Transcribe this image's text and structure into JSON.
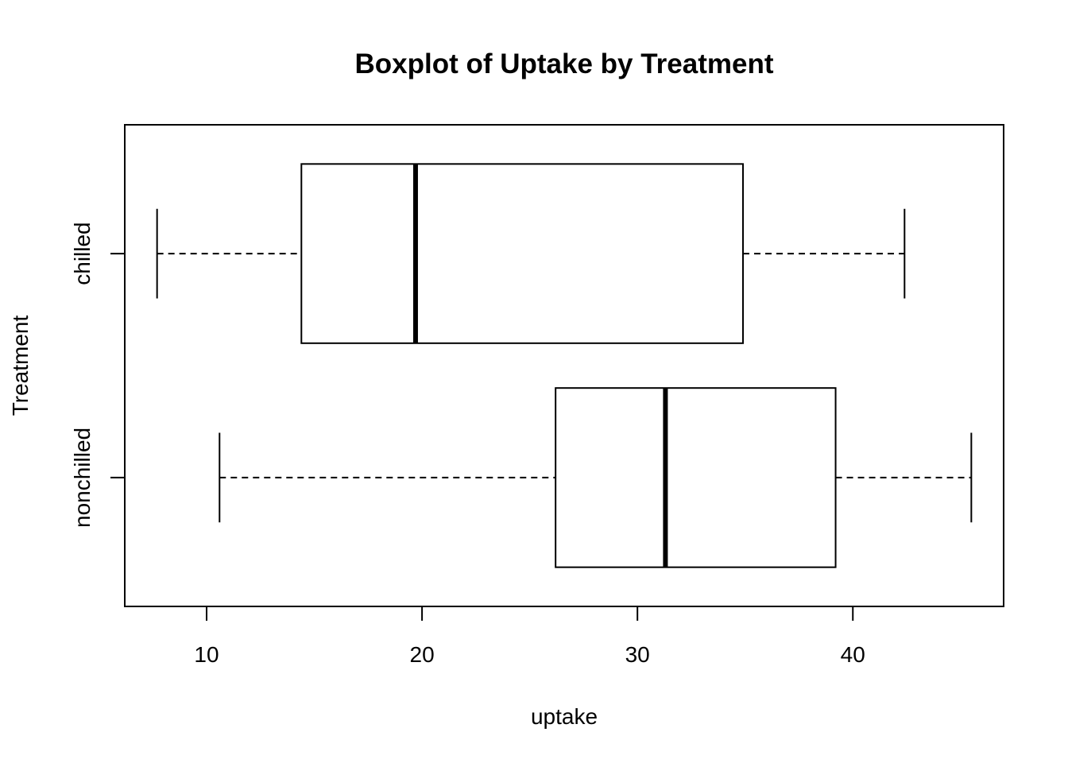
{
  "chart_data": {
    "type": "boxplot",
    "orientation": "horizontal",
    "title": "Boxplot of Uptake by Treatment",
    "xlabel": "uptake",
    "ylabel": "Treatment",
    "xlim": [
      6.2,
      47.0
    ],
    "xticks": [
      10,
      20,
      30,
      40
    ],
    "xtick_labels": [
      "10",
      "20",
      "30",
      "40"
    ],
    "grid": false,
    "categories": [
      "nonchilled",
      "chilled"
    ],
    "series": [
      {
        "category": "nonchilled",
        "min": 10.6,
        "q1": 26.2,
        "median": 31.3,
        "q3": 39.2,
        "max": 45.5
      },
      {
        "category": "chilled",
        "min": 7.7,
        "q1": 14.4,
        "median": 19.7,
        "q3": 34.9,
        "max": 42.4
      }
    ],
    "colors": {
      "stroke": "#000000",
      "background": "#ffffff"
    }
  }
}
